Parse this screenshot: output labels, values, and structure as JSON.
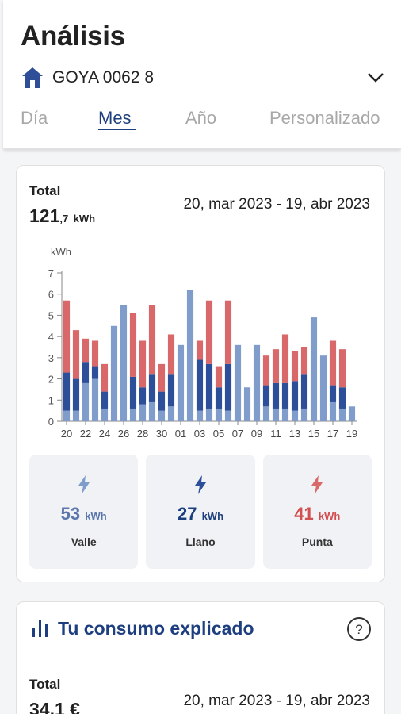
{
  "header": {
    "title": "Análisis",
    "supply": "GOYA 0062 8",
    "tabs": [
      "Día",
      "Mes",
      "Año",
      "Personalizado"
    ],
    "active_tab": "Mes"
  },
  "summary": {
    "total_label": "Total",
    "total_int": "121",
    "total_dec": ",7",
    "total_unit": "kWh",
    "date_range": "20, mar 2023 - 19, abr 2023"
  },
  "chart_data": {
    "type": "bar",
    "stacked": true,
    "ylabel": "kWh",
    "ylim": [
      0,
      7
    ],
    "yticks": [
      0,
      1,
      2,
      3,
      4,
      5,
      6,
      7
    ],
    "x_tick_labels": [
      "20",
      "22",
      "24",
      "26",
      "28",
      "30",
      "01",
      "03",
      "05",
      "07",
      "09",
      "11",
      "13",
      "15",
      "17",
      "19"
    ],
    "categories": [
      "20",
      "21",
      "22",
      "23",
      "24",
      "25",
      "26",
      "27",
      "28",
      "29",
      "30",
      "31",
      "01",
      "02",
      "03",
      "04",
      "05",
      "06",
      "07",
      "08",
      "09",
      "10",
      "11",
      "12",
      "13",
      "14",
      "15",
      "16",
      "17",
      "18",
      "19"
    ],
    "series": [
      {
        "name": "Valle",
        "color": "#7f9ccb",
        "values": [
          0.5,
          0.5,
          1.8,
          2.0,
          0.6,
          4.5,
          5.5,
          0.6,
          0.8,
          0.9,
          0.5,
          0.7,
          3.6,
          6.2,
          0.5,
          0.6,
          0.6,
          0.5,
          3.6,
          1.6,
          3.6,
          0.7,
          0.6,
          0.6,
          0.5,
          0.6,
          4.9,
          3.1,
          0.9,
          0.6,
          0.7
        ]
      },
      {
        "name": "Llano",
        "color": "#2d4f9a",
        "values": [
          1.8,
          1.5,
          1.0,
          0.6,
          0.8,
          0,
          0,
          1.5,
          0.8,
          1.3,
          0.9,
          1.5,
          0,
          0,
          2.4,
          2.1,
          1.0,
          2.2,
          0,
          0,
          0,
          1.0,
          1.2,
          1.2,
          1.4,
          1.6,
          0,
          0,
          0.8,
          1.0,
          0
        ]
      },
      {
        "name": "Punta",
        "color": "#d9686a",
        "values": [
          3.4,
          2.3,
          1.1,
          1.2,
          1.3,
          0,
          0,
          3.0,
          2.2,
          3.3,
          1.3,
          1.9,
          0,
          0,
          0.9,
          3.0,
          1.0,
          3.0,
          0,
          0,
          0,
          1.4,
          1.6,
          2.3,
          1.4,
          1.3,
          0,
          0,
          2.1,
          1.8,
          0
        ]
      }
    ]
  },
  "tiles": [
    {
      "value": "53",
      "unit": "kWh",
      "label": "Valle",
      "color": "#5a76ad"
    },
    {
      "value": "27",
      "unit": "kWh",
      "label": "Llano",
      "color": "#1e3f7f"
    },
    {
      "value": "41",
      "unit": "kWh",
      "label": "Punta",
      "color": "#d24e4f"
    }
  ],
  "explained": {
    "title": "Tu consumo explicado",
    "total_label": "Total",
    "total_value": "34,1 €",
    "date_range": "20, mar 2023 - 19, abr 2023"
  }
}
